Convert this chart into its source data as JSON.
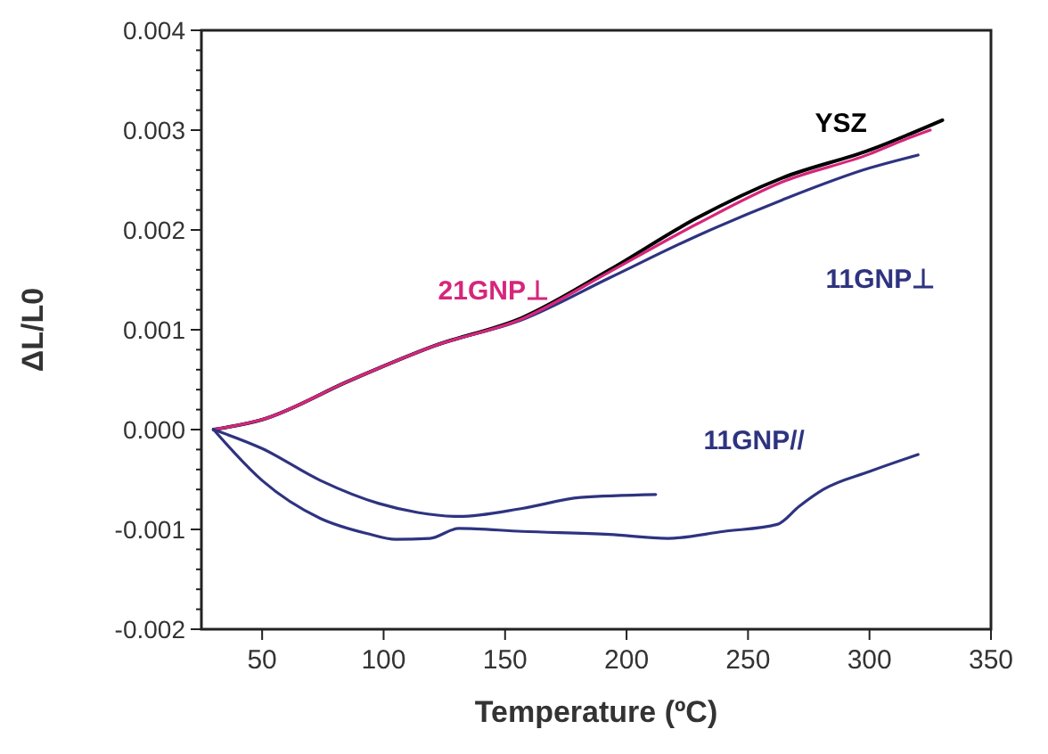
{
  "chart_data": {
    "type": "line",
    "xlabel": "Temperature (ºC)",
    "ylabel": "ΔL/L0",
    "xlim": [
      25,
      350
    ],
    "xticks": [
      50,
      100,
      150,
      200,
      250,
      300,
      350
    ],
    "ylim": [
      -0.002,
      0.004
    ],
    "yticks": [
      {
        "value": -0.002,
        "label": "-0.002"
      },
      {
        "value": -0.001,
        "label": "-0.001"
      },
      {
        "value": 0,
        "label": "0.000"
      },
      {
        "value": 0.001,
        "label": "0.001"
      },
      {
        "value": 0.002,
        "label": "0.002"
      },
      {
        "value": 0.003,
        "label": "0.003"
      },
      {
        "value": 0.004,
        "label": "0.004"
      }
    ],
    "series": [
      {
        "name": "YSZ",
        "color": "#000000",
        "x": [
          30,
          50,
          86,
          121,
          157,
          193,
          229,
          264,
          300,
          330
        ],
        "values": [
          0,
          0.0001,
          0.00049,
          0.00084,
          0.00112,
          0.0016,
          0.00212,
          0.00252,
          0.0028,
          0.0031
        ]
      },
      {
        "name": "11GNP⊥",
        "color": "#2e3380",
        "x": [
          30,
          50,
          86,
          121,
          157,
          193,
          229,
          264,
          300,
          320
        ],
        "values": [
          0,
          0.0001,
          0.00049,
          0.00084,
          0.0011,
          0.00152,
          0.00194,
          0.0023,
          0.00262,
          0.00275
        ]
      },
      {
        "name": "21GNP⊥",
        "color": "#d6267a",
        "x": [
          30,
          50,
          86,
          121,
          157,
          193,
          229,
          264,
          300,
          314,
          325
        ],
        "values": [
          0,
          0.0001,
          0.00049,
          0.00084,
          0.00111,
          0.00158,
          0.00206,
          0.00248,
          0.00276,
          0.0029,
          0.003
        ]
      },
      {
        "name": "11GNP//",
        "color": "#2e3380",
        "x": [
          30,
          50,
          74,
          93,
          105,
          119,
          131,
          157,
          193,
          217,
          240,
          262,
          271,
          281,
          300,
          320
        ],
        "values": [
          0,
          -0.00051,
          -0.00089,
          -0.00104,
          -0.0011,
          -0.00109,
          -0.00099,
          -0.00102,
          -0.00105,
          -0.00109,
          -0.00102,
          -0.00095,
          -0.00077,
          -0.0006,
          -0.00042,
          -0.00025
        ]
      },
      {
        "color": "#2e3380",
        "x": [
          30,
          50,
          74,
          98,
          114,
          131,
          157,
          181,
          212
        ],
        "values": [
          0,
          -0.00019,
          -0.00051,
          -0.00074,
          -0.00083,
          -0.00087,
          -0.00079,
          -0.00068,
          -0.00065
        ]
      }
    ]
  }
}
